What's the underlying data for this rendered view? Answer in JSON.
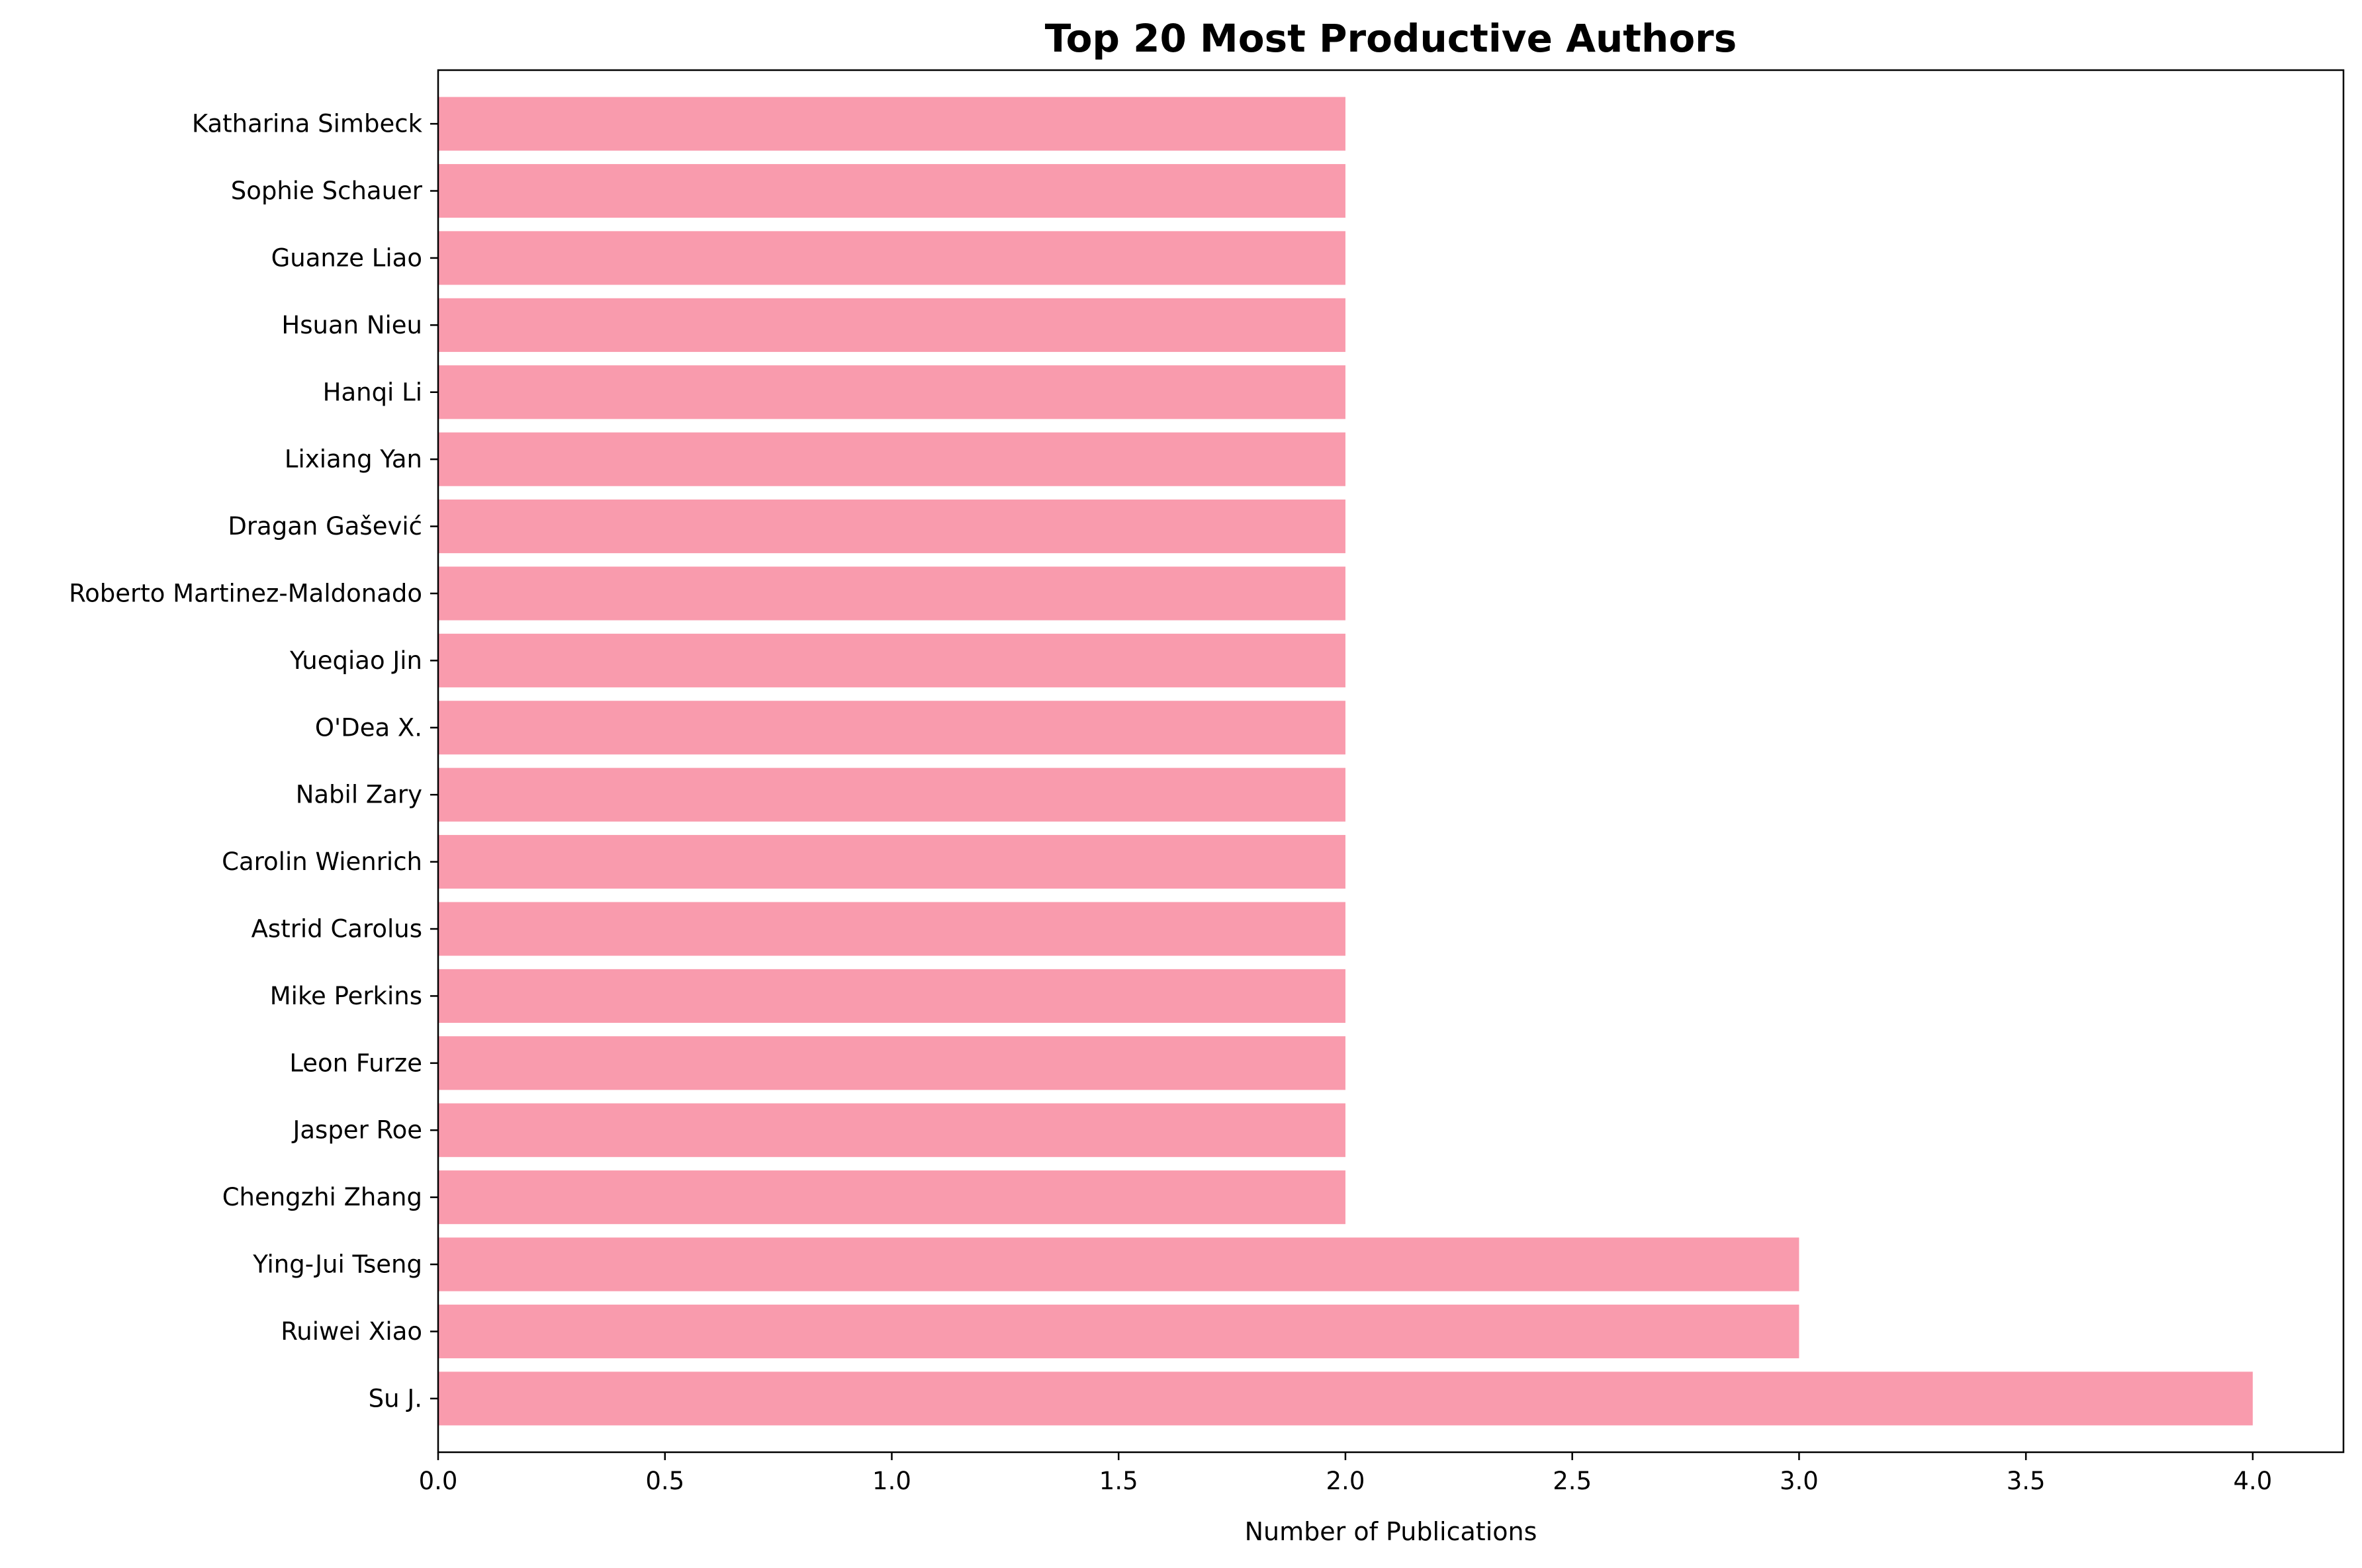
{
  "chart_data": {
    "type": "bar",
    "orientation": "horizontal",
    "title": "Top 20 Most Productive Authors",
    "xlabel": "Number of Publications",
    "ylabel": "",
    "xlim": [
      0,
      4.2
    ],
    "x_ticks": [
      0.0,
      0.5,
      1.0,
      1.5,
      2.0,
      2.5,
      3.0,
      3.5,
      4.0
    ],
    "x_tick_labels": [
      "0.0",
      "0.5",
      "1.0",
      "1.5",
      "2.0",
      "2.5",
      "3.0",
      "3.5",
      "4.0"
    ],
    "grid": false,
    "legend": "none",
    "bar_color": "#f99bad",
    "categories": [
      "Su J.",
      "Ruiwei Xiao",
      "Ying-Jui Tseng",
      "Chengzhi Zhang",
      "Jasper Roe",
      "Leon Furze",
      "Mike Perkins",
      "Astrid Carolus",
      "Carolin Wienrich",
      "Nabil Zary",
      "O'Dea X.",
      "Yueqiao Jin",
      "Roberto Martinez-Maldonado",
      "Dragan Gašević",
      "Lixiang Yan",
      "Hanqi Li",
      "Hsuan Nieu",
      "Guanze Liao",
      "Sophie Schauer",
      "Katharina Simbeck"
    ],
    "values": [
      4,
      3,
      3,
      2,
      2,
      2,
      2,
      2,
      2,
      2,
      2,
      2,
      2,
      2,
      2,
      2,
      2,
      2,
      2,
      2
    ]
  }
}
